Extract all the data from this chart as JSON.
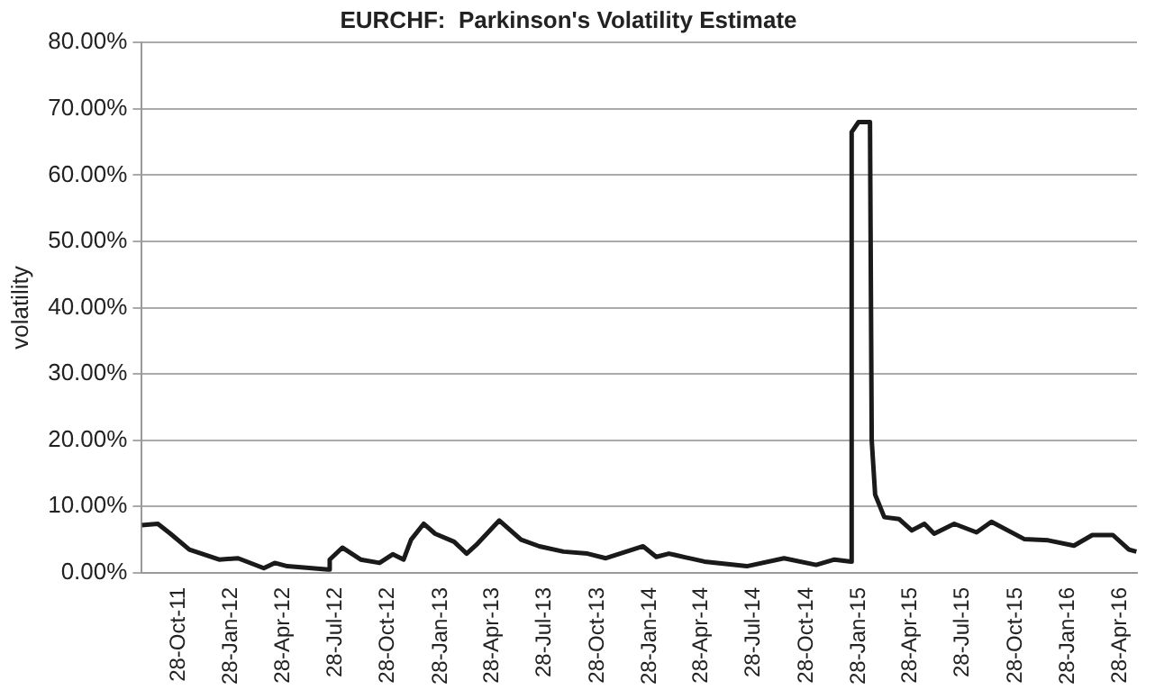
{
  "chart_data": {
    "type": "line",
    "title": "EURCHF:  Parkinson's Volatility Estimate",
    "ylabel": "volatility",
    "xlim": [
      "2011-08-25",
      "2016-05-27"
    ],
    "xticks": [
      {
        "value": "2011-10-28",
        "label": "28-Oct-11"
      },
      {
        "value": "2012-01-28",
        "label": "28-Jan-12"
      },
      {
        "value": "2012-04-28",
        "label": "28-Apr-12"
      },
      {
        "value": "2012-07-28",
        "label": "28-Jul-12"
      },
      {
        "value": "2012-10-28",
        "label": "28-Oct-12"
      },
      {
        "value": "2013-01-28",
        "label": "28-Jan-13"
      },
      {
        "value": "2013-04-28",
        "label": "28-Apr-13"
      },
      {
        "value": "2013-07-28",
        "label": "28-Jul-13"
      },
      {
        "value": "2013-10-28",
        "label": "28-Oct-13"
      },
      {
        "value": "2014-01-28",
        "label": "28-Jan-14"
      },
      {
        "value": "2014-04-28",
        "label": "28-Apr-14"
      },
      {
        "value": "2014-07-28",
        "label": "28-Jul-14"
      },
      {
        "value": "2014-10-28",
        "label": "28-Oct-14"
      },
      {
        "value": "2015-01-28",
        "label": "28-Jan-15"
      },
      {
        "value": "2015-04-28",
        "label": "28-Apr-15"
      },
      {
        "value": "2015-07-28",
        "label": "28-Jul-15"
      },
      {
        "value": "2015-10-28",
        "label": "28-Oct-15"
      },
      {
        "value": "2016-01-28",
        "label": "28-Jan-16"
      },
      {
        "value": "2016-04-28",
        "label": "28-Apr-16"
      }
    ],
    "ylim": [
      0,
      80
    ],
    "yticks": [
      {
        "value": 0,
        "label": "0.00%"
      },
      {
        "value": 10,
        "label": "10.00%"
      },
      {
        "value": 20,
        "label": "20.00%"
      },
      {
        "value": 30,
        "label": "30.00%"
      },
      {
        "value": 40,
        "label": "40.00%"
      },
      {
        "value": 50,
        "label": "50.00%"
      },
      {
        "value": 60,
        "label": "60.00%"
      },
      {
        "value": 70,
        "label": "70.00%"
      },
      {
        "value": 80,
        "label": "80.00%"
      }
    ],
    "grid": "y",
    "legend": false,
    "marker": "none",
    "line_style": "solid",
    "series": [
      {
        "color": "#1a1a1a",
        "x": [
          "2011-08-25",
          "2011-09-22",
          "2011-10-14",
          "2011-11-16",
          "2012-01-07",
          "2012-02-09",
          "2012-03-25",
          "2012-04-13",
          "2012-05-05",
          "2012-07-15",
          "2012-07-18",
          "2012-08-09",
          "2012-09-10",
          "2012-10-13",
          "2012-11-05",
          "2012-11-24",
          "2012-12-07",
          "2012-12-29",
          "2013-01-18",
          "2013-02-20",
          "2013-03-14",
          "2013-04-02",
          "2013-05-10",
          "2013-06-17",
          "2013-07-19",
          "2013-08-30",
          "2013-10-11",
          "2013-11-12",
          "2014-01-16",
          "2014-02-08",
          "2014-03-02",
          "2014-03-12",
          "2014-05-03",
          "2014-07-16",
          "2014-09-19",
          "2014-11-14",
          "2014-12-16",
          "2015-01-14",
          "2015-01-15",
          "2015-01-27",
          "2015-02-16",
          "2015-02-19",
          "2015-02-25",
          "2015-03-13",
          "2015-04-08",
          "2015-04-30",
          "2015-05-22",
          "2015-06-08",
          "2015-07-13",
          "2015-08-21",
          "2015-09-16",
          "2015-11-12",
          "2015-12-24",
          "2016-02-07",
          "2016-03-10",
          "2016-04-15",
          "2016-05-13",
          "2016-05-26"
        ],
        "values": [
          7.2,
          7.4,
          5.9,
          3.5,
          2.0,
          2.2,
          0.7,
          1.5,
          1.0,
          0.5,
          2.0,
          3.8,
          2.0,
          1.5,
          2.8,
          2.0,
          5.0,
          7.4,
          5.9,
          4.7,
          2.9,
          4.4,
          7.9,
          5.0,
          4.0,
          3.2,
          2.9,
          2.2,
          4.0,
          2.4,
          2.9,
          2.7,
          1.7,
          1.0,
          2.2,
          1.2,
          2.0,
          1.7,
          66.5,
          68,
          68,
          20.0,
          11.8,
          8.4,
          8.1,
          6.4,
          7.4,
          5.9,
          7.4,
          6.1,
          7.7,
          5.1,
          4.9,
          4.1,
          5.7,
          5.7,
          3.5,
          3.2
        ]
      }
    ]
  }
}
